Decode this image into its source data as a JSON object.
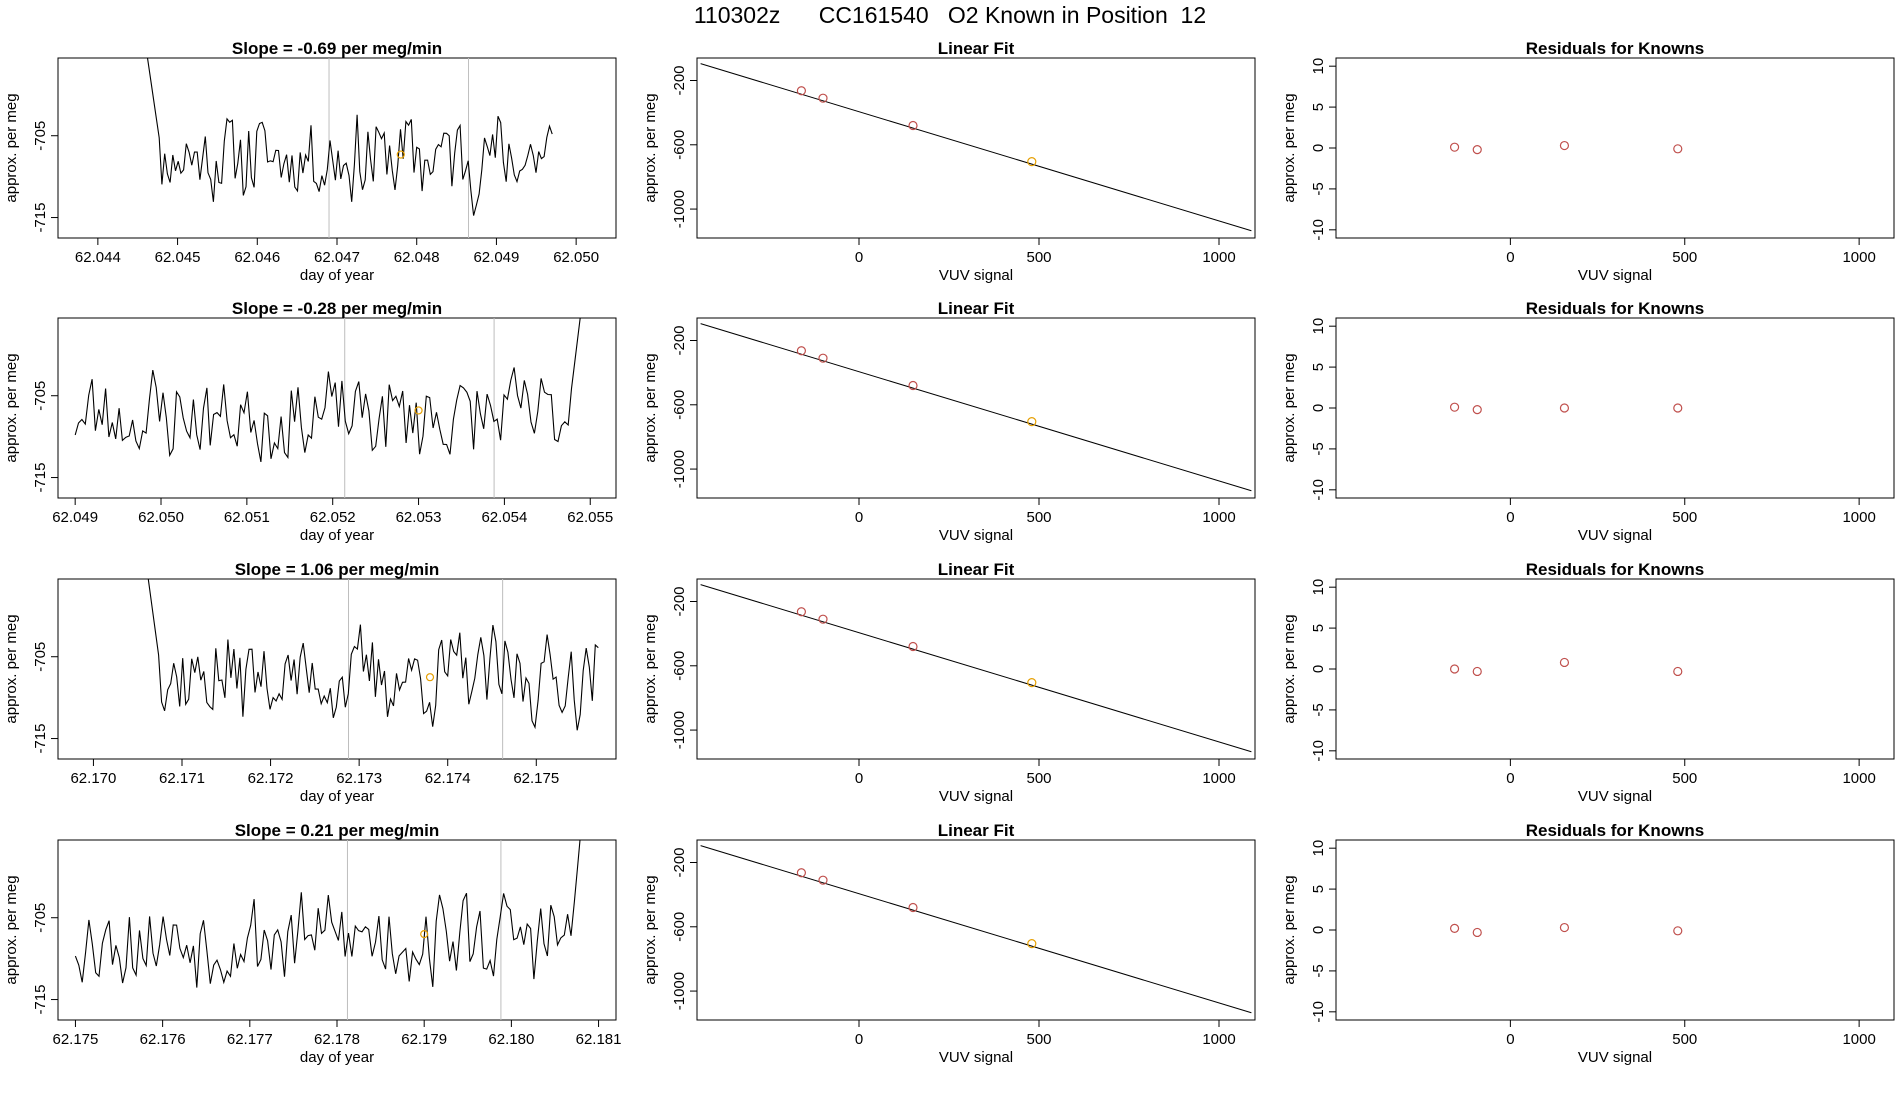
{
  "header": {
    "title": "110302z      CC161540   O2 Known in Position  12"
  },
  "colors": {
    "line": "#000000",
    "guide": "#bebebe",
    "known_point": "#c0504d",
    "sample_point": "#e69f00",
    "axis": "#000000"
  },
  "chart_data": [
    {
      "type": "line",
      "row": 1,
      "title": "Slope =  -0.69  per meg/min",
      "xlabel": "day of year",
      "ylabel": "approx. per meg",
      "xlim": [
        62.0435,
        62.0505
      ],
      "ylim": [
        -717.5,
        -695.5
      ],
      "xticks": [
        "62.044",
        "62.045",
        "62.046",
        "62.047",
        "62.048",
        "62.049",
        "62.050"
      ],
      "yticks": [
        "-715",
        "-705"
      ],
      "vlines": [
        62.0469,
        62.04865
      ],
      "marker": {
        "x": 62.0478,
        "y": -707.3
      },
      "series": {
        "x_start": 62.0446,
        "x_end": 62.0497,
        "y_start": -694,
        "y_end": -704.8,
        "noise_seed": 11,
        "lead_in_points": 6
      }
    },
    {
      "type": "scatter",
      "row": 1,
      "title": "Linear Fit",
      "xlabel": "VUV signal",
      "ylabel": "approx. per meg",
      "xlim": [
        -450,
        1100
      ],
      "ylim": [
        -1180,
        -60
      ],
      "xticks": [
        "0",
        "500",
        "1000"
      ],
      "yticks": [
        "-200",
        "-600",
        "-1000"
      ],
      "fit_line": {
        "x": [
          -440,
          1090
        ],
        "y": [
          -95,
          -1135
        ]
      },
      "points": [
        {
          "x": -160,
          "y": -264,
          "kind": "known"
        },
        {
          "x": -100,
          "y": -310,
          "kind": "known"
        },
        {
          "x": 150,
          "y": -480,
          "kind": "known"
        },
        {
          "x": 480,
          "y": -705,
          "kind": "sample"
        }
      ]
    },
    {
      "type": "scatter",
      "row": 1,
      "title": "Residuals for Knowns",
      "xlabel": "VUV signal",
      "ylabel": "approx. per meg",
      "xlim": [
        -500,
        1100
      ],
      "ylim": [
        -11,
        11
      ],
      "xticks": [
        "0",
        "500",
        "1000"
      ],
      "yticks": [
        "10",
        "5",
        "0",
        "-5",
        "-10"
      ],
      "points": [
        {
          "x": -160,
          "y": 0.1
        },
        {
          "x": -95,
          "y": -0.2
        },
        {
          "x": 155,
          "y": 0.3
        },
        {
          "x": 480,
          "y": -0.1
        }
      ]
    },
    {
      "type": "line",
      "row": 2,
      "title": "Slope =  -0.28  per meg/min",
      "xlabel": "day of year",
      "ylabel": "approx. per meg",
      "xlim": [
        62.0488,
        62.0553
      ],
      "ylim": [
        -717.5,
        -695.5
      ],
      "xticks": [
        "62.049",
        "62.050",
        "62.051",
        "62.052",
        "62.053",
        "62.054",
        "62.055"
      ],
      "yticks": [
        "-715",
        "-705"
      ],
      "vlines": [
        62.05214,
        62.05388
      ],
      "marker": {
        "x": 62.053,
        "y": -706.8
      },
      "series": {
        "x_start": 62.049,
        "x_end": 62.0549,
        "y_start": -708,
        "y_end": -694,
        "noise_seed": 23,
        "lead_out_points": 4
      }
    },
    {
      "type": "scatter",
      "row": 2,
      "title": "Linear Fit",
      "xlabel": "VUV signal",
      "ylabel": "approx. per meg",
      "xlim": [
        -450,
        1100
      ],
      "ylim": [
        -1180,
        -60
      ],
      "xticks": [
        "0",
        "500",
        "1000"
      ],
      "yticks": [
        "-200",
        "-600",
        "-1000"
      ],
      "fit_line": {
        "x": [
          -440,
          1090
        ],
        "y": [
          -95,
          -1135
        ]
      },
      "points": [
        {
          "x": -160,
          "y": -264,
          "kind": "known"
        },
        {
          "x": -100,
          "y": -310,
          "kind": "known"
        },
        {
          "x": 150,
          "y": -480,
          "kind": "known"
        },
        {
          "x": 480,
          "y": -705,
          "kind": "sample"
        }
      ]
    },
    {
      "type": "scatter",
      "row": 2,
      "title": "Residuals for Knowns",
      "xlabel": "VUV signal",
      "ylabel": "approx. per meg",
      "xlim": [
        -500,
        1100
      ],
      "ylim": [
        -11,
        11
      ],
      "xticks": [
        "0",
        "500",
        "1000"
      ],
      "yticks": [
        "10",
        "5",
        "0",
        "-5",
        "-10"
      ],
      "points": [
        {
          "x": -160,
          "y": 0.1
        },
        {
          "x": -95,
          "y": -0.2
        },
        {
          "x": 155,
          "y": 0.0
        },
        {
          "x": 480,
          "y": 0.0
        }
      ]
    },
    {
      "type": "line",
      "row": 3,
      "title": "Slope =  1.06  per meg/min",
      "xlabel": "day of year",
      "ylabel": "approx. per meg",
      "xlim": [
        62.1696,
        62.1759
      ],
      "ylim": [
        -717.5,
        -695.5
      ],
      "xticks": [
        "62.170",
        "62.171",
        "62.172",
        "62.173",
        "62.174",
        "62.175"
      ],
      "yticks": [
        "-715",
        "-705"
      ],
      "vlines": [
        62.17288,
        62.17462
      ],
      "marker": {
        "x": 62.1738,
        "y": -707.5
      },
      "series": {
        "x_start": 62.1706,
        "x_end": 62.1757,
        "y_start": -694,
        "y_end": -707,
        "noise_seed": 37,
        "lead_in_points": 5
      }
    },
    {
      "type": "scatter",
      "row": 3,
      "title": "Linear Fit",
      "xlabel": "VUV signal",
      "ylabel": "approx. per meg",
      "xlim": [
        -450,
        1100
      ],
      "ylim": [
        -1180,
        -60
      ],
      "xticks": [
        "0",
        "500",
        "1000"
      ],
      "yticks": [
        "-200",
        "-600",
        "-1000"
      ],
      "fit_line": {
        "x": [
          -440,
          1090
        ],
        "y": [
          -95,
          -1135
        ]
      },
      "points": [
        {
          "x": -160,
          "y": -264,
          "kind": "known"
        },
        {
          "x": -100,
          "y": -310,
          "kind": "known"
        },
        {
          "x": 150,
          "y": -480,
          "kind": "known"
        },
        {
          "x": 480,
          "y": -705,
          "kind": "sample"
        }
      ]
    },
    {
      "type": "scatter",
      "row": 3,
      "title": "Residuals for Knowns",
      "xlabel": "VUV signal",
      "ylabel": "approx. per meg",
      "xlim": [
        -500,
        1100
      ],
      "ylim": [
        -11,
        11
      ],
      "xticks": [
        "0",
        "500",
        "1000"
      ],
      "yticks": [
        "10",
        "5",
        "0",
        "-5",
        "-10"
      ],
      "points": [
        {
          "x": -160,
          "y": 0.0
        },
        {
          "x": -95,
          "y": -0.3
        },
        {
          "x": 155,
          "y": 0.8
        },
        {
          "x": 480,
          "y": -0.3
        }
      ]
    },
    {
      "type": "line",
      "row": 4,
      "title": "Slope =  0.21  per meg/min",
      "xlabel": "day of year",
      "ylabel": "approx. per meg",
      "xlim": [
        62.1748,
        62.1812
      ],
      "ylim": [
        -717.5,
        -695.5
      ],
      "xticks": [
        "62.175",
        "62.176",
        "62.177",
        "62.178",
        "62.179",
        "62.180",
        "62.181"
      ],
      "yticks": [
        "-715",
        "-705"
      ],
      "vlines": [
        62.17812,
        62.17988
      ],
      "marker": {
        "x": 62.179,
        "y": -707.0
      },
      "series": {
        "x_start": 62.175,
        "x_end": 62.1808,
        "y_start": -709,
        "y_end": -694,
        "noise_seed": 53,
        "lead_out_points": 3
      }
    },
    {
      "type": "scatter",
      "row": 4,
      "title": "Linear Fit",
      "xlabel": "VUV signal",
      "ylabel": "approx. per meg",
      "xlim": [
        -450,
        1100
      ],
      "ylim": [
        -1180,
        -60
      ],
      "xticks": [
        "0",
        "500",
        "1000"
      ],
      "yticks": [
        "-200",
        "-600",
        "-1000"
      ],
      "fit_line": {
        "x": [
          -440,
          1090
        ],
        "y": [
          -95,
          -1135
        ]
      },
      "points": [
        {
          "x": -160,
          "y": -264,
          "kind": "known"
        },
        {
          "x": -100,
          "y": -310,
          "kind": "known"
        },
        {
          "x": 150,
          "y": -480,
          "kind": "known"
        },
        {
          "x": 480,
          "y": -705,
          "kind": "sample"
        }
      ]
    },
    {
      "type": "scatter",
      "row": 4,
      "title": "Residuals for Knowns",
      "xlabel": "VUV signal",
      "ylabel": "approx. per meg",
      "xlim": [
        -500,
        1100
      ],
      "ylim": [
        -11,
        11
      ],
      "xticks": [
        "0",
        "500",
        "1000"
      ],
      "yticks": [
        "10",
        "5",
        "0",
        "-5",
        "-10"
      ],
      "points": [
        {
          "x": -160,
          "y": 0.2
        },
        {
          "x": -95,
          "y": -0.3
        },
        {
          "x": 155,
          "y": 0.3
        },
        {
          "x": 480,
          "y": -0.1
        }
      ]
    }
  ]
}
